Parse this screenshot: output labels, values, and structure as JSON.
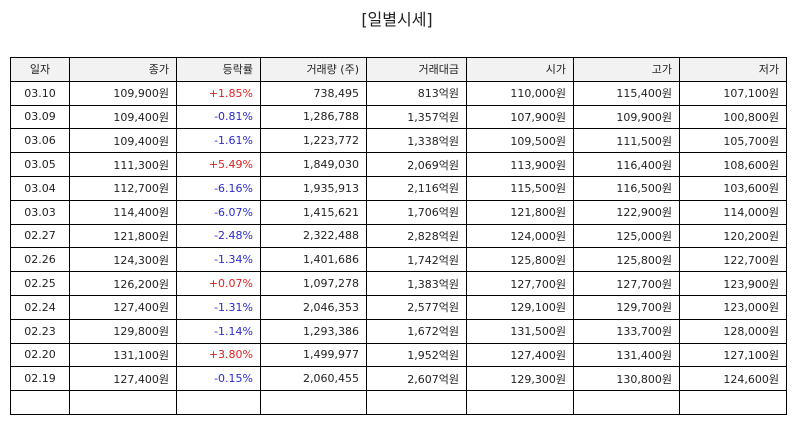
{
  "header": {
    "title": "[일별시세]"
  },
  "table": {
    "columns": [
      "일자",
      "종가",
      "등락률",
      "거래량 (주)",
      "거래대금",
      "시가",
      "고가",
      "저가"
    ],
    "rows": [
      [
        "03.10",
        "109,900원",
        "+1.85%",
        "738,495",
        "813억원",
        "110,000원",
        "115,400원",
        "107,100원"
      ],
      [
        "03.09",
        "109,400원",
        "-0.81%",
        "1,286,788",
        "1,357억원",
        "107,900원",
        "109,900원",
        "100,800원"
      ],
      [
        "03.06",
        "109,400원",
        "-1.61%",
        "1,223,772",
        "1,338억원",
        "109,500원",
        "111,500원",
        "105,700원"
      ],
      [
        "03.05",
        "111,300원",
        "+5.49%",
        "1,849,030",
        "2,069억원",
        "113,900원",
        "116,400원",
        "108,600원"
      ],
      [
        "03.04",
        "112,700원",
        "-6.16%",
        "1,935,913",
        "2,116억원",
        "115,500원",
        "116,500원",
        "103,600원"
      ],
      [
        "03.03",
        "114,400원",
        "-6.07%",
        "1,415,621",
        "1,706억원",
        "121,800원",
        "122,900원",
        "114,000원"
      ],
      [
        "02.27",
        "121,800원",
        "-2.48%",
        "2,322,488",
        "2,828억원",
        "124,000원",
        "125,000원",
        "120,200원"
      ],
      [
        "02.26",
        "124,300원",
        "-1.34%",
        "1,401,686",
        "1,742억원",
        "125,800원",
        "125,800원",
        "122,700원"
      ],
      [
        "02.25",
        "126,200원",
        "+0.07%",
        "1,097,278",
        "1,383억원",
        "127,700원",
        "127,700원",
        "123,900원"
      ],
      [
        "02.24",
        "127,400원",
        "-1.31%",
        "2,046,353",
        "2,577억원",
        "129,100원",
        "129,700원",
        "123,000원"
      ],
      [
        "02.23",
        "129,800원",
        "-1.14%",
        "1,293,386",
        "1,672억원",
        "131,500원",
        "133,700원",
        "128,000원"
      ],
      [
        "02.20",
        "131,100원",
        "+3.80%",
        "1,499,977",
        "1,952억원",
        "127,400원",
        "131,400원",
        "127,100원"
      ],
      [
        "02.19",
        "127,400원",
        "-0.15%",
        "2,060,455",
        "2,607억원",
        "129,300원",
        "130,800원",
        "124,600원"
      ]
    ]
  }
}
